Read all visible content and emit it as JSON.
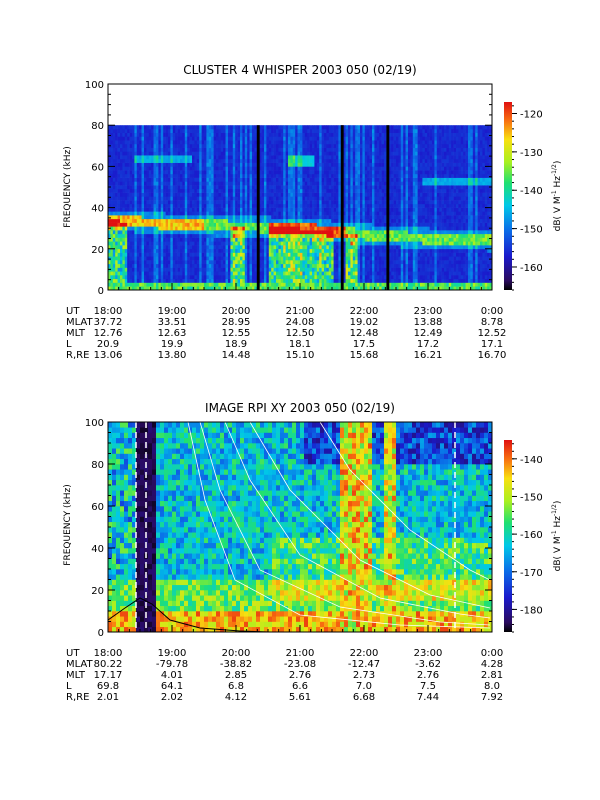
{
  "chart_data": [
    {
      "type": "heatmap",
      "title": "CLUSTER 4 WHISPER 2003 050 (02/19)",
      "ylabel": "FREQUENCY (kHz)",
      "ylim": [
        0,
        100
      ],
      "yticks": [
        "0",
        "20",
        "40",
        "60",
        "80",
        "100"
      ],
      "colorbar": {
        "label": "dB( V M⁻¹ Hz⁻¹ᐟ²)",
        "label_main": "dB( V M",
        "label_sup1": "-1",
        "label_mid": " Hz",
        "label_sup2": "-1/2",
        "label_end": ")",
        "range": [
          -166,
          -117
        ],
        "ticks": [
          "-120",
          "-130",
          "-140",
          "-150",
          "-160"
        ]
      },
      "data_ceiling_khz": 80,
      "ephemeris": {
        "rows": [
          {
            "name": "UT",
            "values": [
              "18:00",
              "19:00",
              "20:00",
              "21:00",
              "22:00",
              "23:00",
              "0:00"
            ]
          },
          {
            "name": "MLAT",
            "values": [
              "37.72",
              "33.51",
              "28.95",
              "24.08",
              "19.02",
              "13.88",
              "8.78"
            ]
          },
          {
            "name": "MLT",
            "values": [
              "12.76",
              "12.63",
              "12.55",
              "12.50",
              "12.48",
              "12.49",
              "12.52"
            ]
          },
          {
            "name": "L",
            "values": [
              "20.9",
              "19.9",
              "18.9",
              "18.1",
              "17.5",
              "17.2",
              "17.1"
            ]
          },
          {
            "name": "R,RE",
            "values": [
              "13.06",
              "13.80",
              "14.48",
              "15.10",
              "15.68",
              "16.21",
              "16.70"
            ]
          }
        ]
      },
      "features": {
        "plasma_line_khz": [
          [
            0.0,
            34
          ],
          [
            0.5,
            33
          ],
          [
            1.0,
            32
          ],
          [
            2.0,
            31
          ],
          [
            3.0,
            30
          ],
          [
            4.0,
            27
          ],
          [
            5.0,
            25
          ],
          [
            6.0,
            24
          ]
        ],
        "upper_band_khz": [
          [
            5.0,
            52
          ],
          [
            6.0,
            50
          ]
        ]
      }
    },
    {
      "type": "heatmap",
      "title": "IMAGE RPI XY 2003 050 (02/19)",
      "ylabel": "FREQUENCY (kHz)",
      "ylim": [
        0,
        100
      ],
      "yticks": [
        "0",
        "20",
        "40",
        "60",
        "80",
        "100"
      ],
      "colorbar": {
        "label_main": "dB( V M",
        "label_sup1": "-1",
        "label_mid": " Hz",
        "label_sup2": "-1/2",
        "label_end": ")",
        "range": [
          -186,
          -135
        ],
        "ticks": [
          "-140",
          "-150",
          "-160",
          "-170",
          "-180"
        ]
      },
      "ephemeris": {
        "rows": [
          {
            "name": "UT",
            "values": [
              "18:00",
              "19:00",
              "20:00",
              "21:00",
              "22:00",
              "23:00",
              "0:00"
            ]
          },
          {
            "name": "MLAT",
            "values": [
              "80.22",
              "-79.78",
              "-38.82",
              "-23.08",
              "-12.47",
              "-3.62",
              "4.28"
            ]
          },
          {
            "name": "MLT",
            "values": [
              "17.17",
              "4.01",
              "2.85",
              "2.76",
              "2.73",
              "2.76",
              "2.81"
            ]
          },
          {
            "name": "L",
            "values": [
              "69.8",
              "64.1",
              "6.8",
              "6.6",
              "7.0",
              "7.5",
              "8.0"
            ]
          },
          {
            "name": "R,RE",
            "values": [
              "2.01",
              "2.02",
              "4.12",
              "5.61",
              "6.68",
              "7.44",
              "7.92"
            ]
          }
        ]
      }
    }
  ]
}
